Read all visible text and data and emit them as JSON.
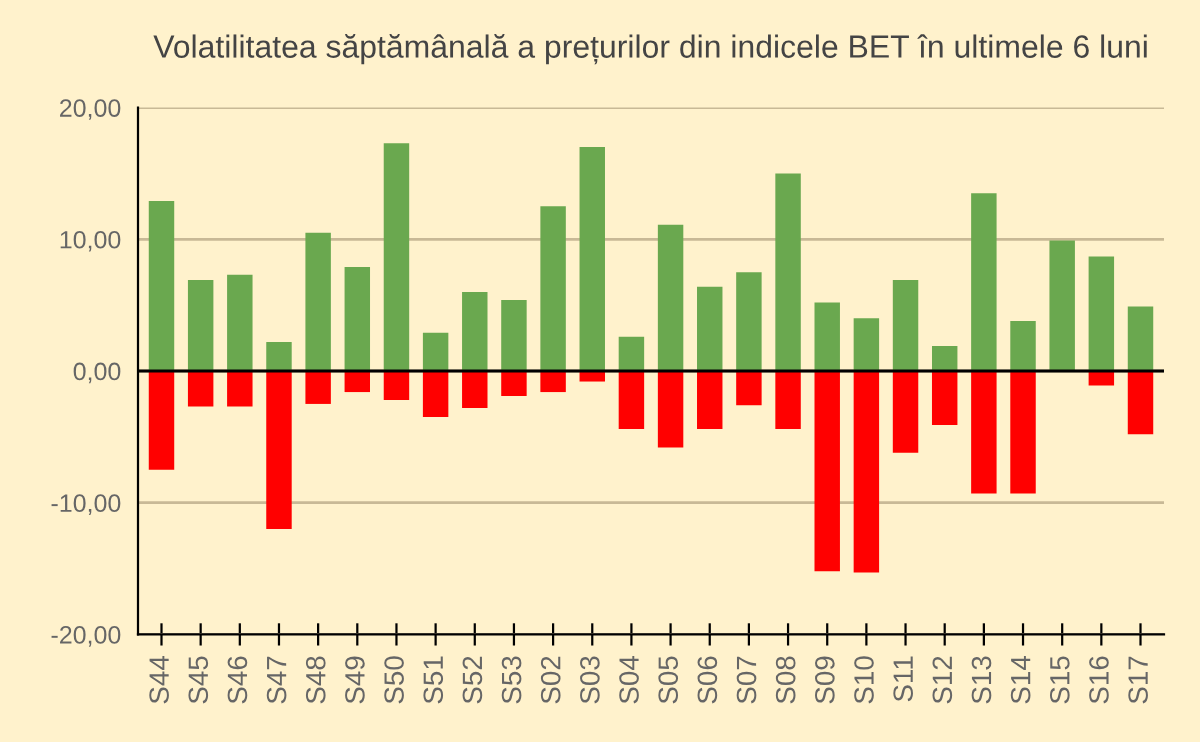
{
  "chart_data": {
    "type": "bar",
    "title": "Volatilitatea săptămânală a prețurilor din indicele BET în ultimele 6 luni",
    "categories": [
      "S44",
      "S45",
      "S46",
      "S47",
      "S48",
      "S49",
      "S50",
      "S51",
      "S52",
      "S53",
      "S02",
      "S03",
      "S04",
      "S05",
      "S06",
      "S07",
      "S08",
      "S09",
      "S10",
      "S11",
      "S12",
      "S13",
      "S14",
      "S15",
      "S16",
      "S17"
    ],
    "stacked": true,
    "series": [
      {
        "color": "#6aa84f",
        "values": [
          12.9,
          6.9,
          7.3,
          2.2,
          10.5,
          7.9,
          17.3,
          2.9,
          6.0,
          5.4,
          12.5,
          17.0,
          2.6,
          11.1,
          6.4,
          7.5,
          15.0,
          5.2,
          4.0,
          6.9,
          1.9,
          13.5,
          3.8,
          9.9,
          8.7,
          4.9
        ]
      },
      {
        "color": "#ff0000",
        "values": [
          -7.5,
          -2.7,
          -2.7,
          -12.0,
          -2.5,
          -1.6,
          -2.2,
          -3.5,
          -2.8,
          -1.9,
          -1.6,
          -0.8,
          -4.4,
          -5.8,
          -4.4,
          -2.6,
          -4.4,
          -15.2,
          -15.3,
          -6.2,
          -4.1,
          -9.3,
          -9.3,
          null,
          -1.1,
          -4.8
        ]
      }
    ],
    "ylim": [
      -20,
      20
    ],
    "yticks": [
      {
        "value": -20,
        "label": "-20,00"
      },
      {
        "value": -10,
        "label": "-10,00"
      },
      {
        "value": 0,
        "label": "0,00"
      },
      {
        "value": 10,
        "label": "10,00"
      },
      {
        "value": 20,
        "label": "20,00"
      }
    ],
    "grid": "y",
    "ref_lines": [
      {
        "axis": "y",
        "value": 0,
        "color": "#000000"
      }
    ]
  }
}
